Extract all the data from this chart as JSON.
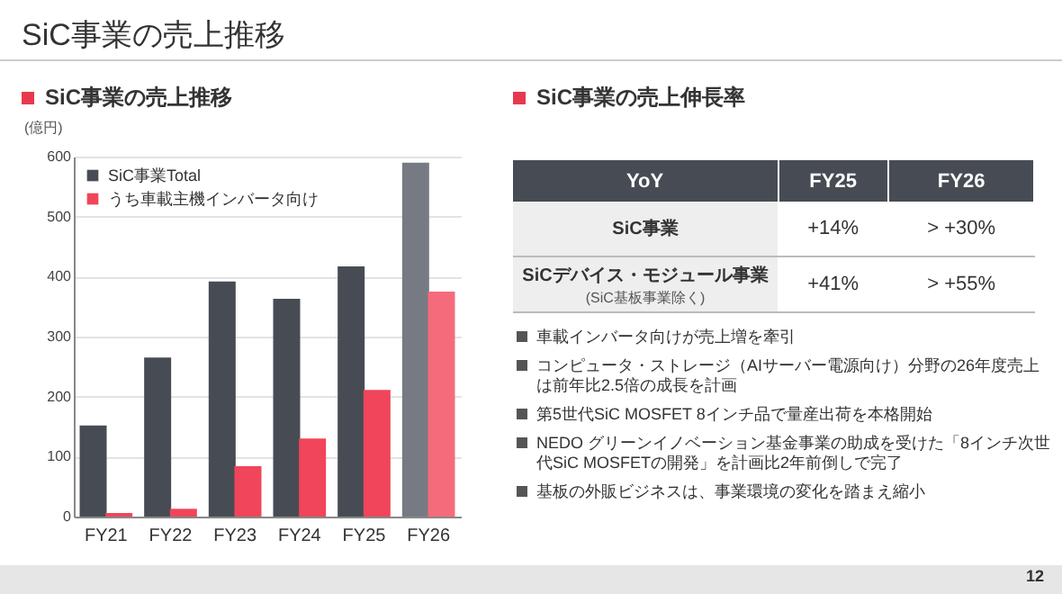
{
  "chart_data": [
    {
      "type": "bar",
      "title": "SiC事業の売上推移",
      "ylabel": "(億円)",
      "annotations": [
        "SiC事業の売上推移"
      ],
      "categories": [
        "FY21",
        "FY22",
        "FY23",
        "FY24",
        "FY25",
        "FY26"
      ],
      "series": [
        {
          "name": "SiC事業Total",
          "color": "#474c54",
          "colors": [
            "#474c54",
            "#474c54",
            "#474c54",
            "#474c54",
            "#474c54",
            "#767b83"
          ],
          "values": [
            152,
            265,
            392,
            363,
            417,
            590
          ]
        },
        {
          "name": "うち車載主機インバータ向け",
          "color": "#f0455a",
          "colors": [
            "#f0455a",
            "#f0455a",
            "#f0455a",
            "#f0455a",
            "#f0455a",
            "#f56b7c"
          ],
          "values": [
            6,
            13,
            84,
            130,
            211,
            375
          ]
        }
      ],
      "ylim": [
        0,
        600
      ],
      "yticks": [
        0,
        100,
        200,
        300,
        400,
        500,
        600
      ],
      "grid": "y",
      "legend": "top left"
    },
    {
      "type": "other",
      "title": "SiC事業の売上伸長率",
      "ylabel": "YoY",
      "categories": [
        "FY25",
        "FY26"
      ],
      "y_categories": [
        "SiC事業",
        "SiCデバイス・モジュール事業\n(SiC基板事業除く)"
      ],
      "cell_labels": [
        [
          "+14%",
          "> +30%"
        ],
        [
          "+41%",
          "> +55%"
        ]
      ],
      "annotations": [
        "車載インバータ向けが売上増を牽引",
        "コンピュータ・ストレージ（AIサーバー電源向け）分野の26年度売上は前年比2.5倍の成長を計画",
        "第5世代SiC MOSFET 8インチ品で量産出荷を本格開始",
        "NEDO グリーンイノベーション基金事業の助成を受けた「8インチ次世代SiC MOSFETの開発」を計画比2年前倒しで完了",
        "基板の外販ビジネスは、事業環境の変化を踏まえ縮小",
        "12"
      ]
    }
  ]
}
